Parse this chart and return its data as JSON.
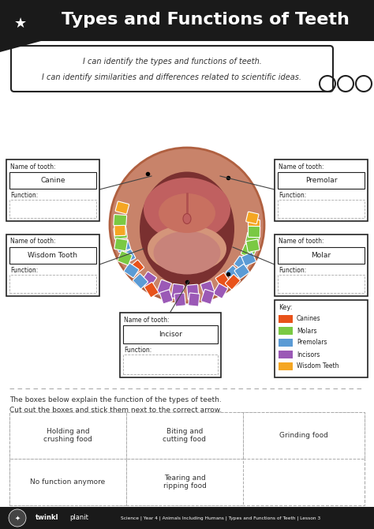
{
  "title": "Types and Functions of Teeth",
  "subtitle1": "I can identify the types and functions of teeth.",
  "subtitle2": "I can identify similarities and differences related to scientific ideas.",
  "bg_color": "#ffffff",
  "header_bg": "#1a1a1a",
  "key_items": [
    {
      "label": "Canines",
      "color": "#e8521a"
    },
    {
      "label": "Molars",
      "color": "#7ac943"
    },
    {
      "label": "Premolars",
      "color": "#5b9bd5"
    },
    {
      "label": "Incisors",
      "color": "#9b59b6"
    },
    {
      "label": "Wisdom Teeth",
      "color": "#f5a623"
    }
  ],
  "footer_text": "Science | Year 4 | Animals Including Humans | Types and Functions of Teeth | Lesson 3",
  "footer_bg": "#1a1a1a",
  "tooth_color_canine": "#e8521a",
  "tooth_color_molar": "#7ac943",
  "tooth_color_premolar": "#5b9bd5",
  "tooth_color_incisor": "#9b59b6",
  "tooth_color_wisdom": "#f5a623",
  "skin_color": "#c8836a",
  "skin_dark": "#b06040",
  "gum_color": "#c06060",
  "throat_color": "#7a3030",
  "palate_color": "#d4957a"
}
